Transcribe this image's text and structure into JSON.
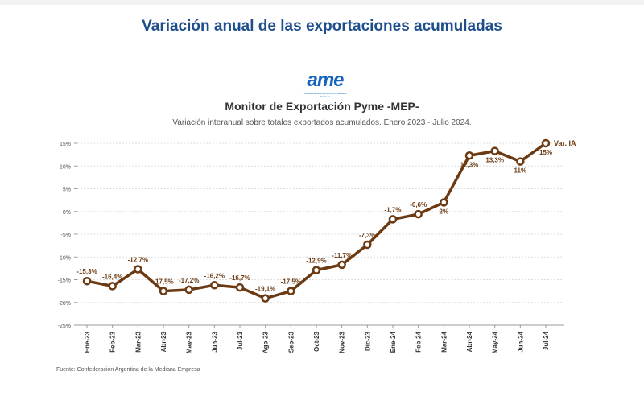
{
  "header": {
    "title": "Variación anual de las exportaciones acumuladas"
  },
  "logo": {
    "text": "ame",
    "subtext": "Confederación Argentina de la Mediana Empresa"
  },
  "footer": {
    "source": "Fuente: Confederación Argentina de la Mediana Empresa"
  },
  "colors": {
    "line": "#6b3a12",
    "label": "#6b3a12",
    "grid": "#dddddd",
    "title": "#1f4e8c"
  },
  "chart_data": {
    "type": "line",
    "title": "Monitor de Exportación Pyme -MEP-",
    "subtitle": "Variación interanual sobre totales exportados acumulados. Enero 2023 - Julio 2024.",
    "categories": [
      "Ene-23",
      "Feb-23",
      "Mar-23",
      "Abr-23",
      "May-23",
      "Jun-23",
      "Jul-23",
      "Ago-23",
      "Sep-23",
      "Oct-23",
      "Nov-23",
      "Dic-23",
      "Ene-24",
      "Feb-24",
      "Mar-24",
      "Abr-24",
      "May-24",
      "Jun-24",
      "Jul-24"
    ],
    "series": [
      {
        "name": "Var. IA",
        "values": [
          -15.3,
          -16.4,
          -12.7,
          -17.5,
          -17.2,
          -16.2,
          -16.7,
          -19.1,
          -17.5,
          -12.9,
          -11.7,
          -7.3,
          -1.7,
          -0.6,
          2,
          12.3,
          13.3,
          11,
          15
        ],
        "labels": [
          "-15,3%",
          "-16,4%",
          "-12,7%",
          "-17,5%",
          "-17,2%",
          "-16,2%",
          "-16,7%",
          "-19,1%",
          "-17,5%",
          "-12,9%",
          "-11,7%",
          "-7,3%",
          "-1,7%",
          "-0,6%",
          "2%",
          "12,3%",
          "13,3%",
          "11%",
          "15%"
        ]
      }
    ],
    "yticks": [
      15,
      10,
      5,
      0,
      -5,
      -10,
      -15,
      -20,
      -25
    ],
    "ytick_labels": [
      "15%",
      "10%",
      "5%",
      "0%",
      "-5%",
      "-10%",
      "-15%",
      "-20%",
      "-25%"
    ],
    "ylim": [
      -25,
      15
    ],
    "grid": true,
    "legend": "end-of-line"
  }
}
